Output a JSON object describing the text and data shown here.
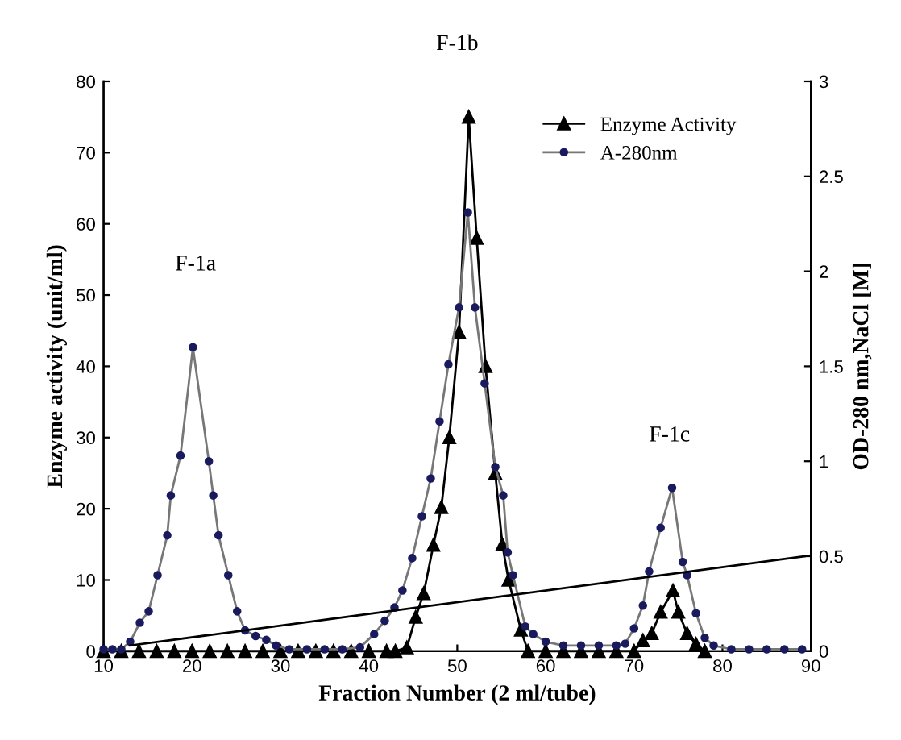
{
  "chart_data": {
    "type": "line",
    "title": "F-1b",
    "xlabel": "Fraction Number (2 ml/tube)",
    "ylabel": "Enzyme activity (unit/ml)",
    "y2label": "OD-280 nm,NaCl [M]",
    "xlim": [
      10,
      90
    ],
    "xticks": [
      10,
      20,
      30,
      40,
      50,
      60,
      70,
      80,
      90
    ],
    "ylim": [
      0,
      80
    ],
    "yticks": [
      0,
      10,
      20,
      30,
      40,
      50,
      60,
      70,
      80
    ],
    "y2lim": [
      0,
      3
    ],
    "y2ticks": [
      0,
      0.5,
      1,
      1.5,
      2,
      2.5,
      3
    ],
    "grid": false,
    "legend": "top right",
    "annotations": [
      "F-1a",
      "F-1c"
    ],
    "series": [
      {
        "name": "Enzyme Activity",
        "color": "#000000",
        "marker": "triangle",
        "x": [
          10,
          12,
          14,
          16,
          18,
          20,
          22,
          24,
          26,
          28,
          30,
          32,
          34,
          36,
          38,
          40,
          42,
          43,
          44.3,
          45.3,
          46.2,
          47.3,
          48.2,
          49.1,
          50.2,
          51.3,
          52.2,
          53.2,
          54.3,
          55.1,
          55.8,
          57.2,
          58,
          60,
          62,
          64,
          66,
          68,
          70,
          71,
          72,
          73,
          74.4,
          75,
          76,
          77,
          78
        ],
        "values": [
          0,
          0,
          0,
          0,
          0,
          0,
          0,
          0,
          0,
          0,
          0,
          0,
          0,
          0,
          0,
          0,
          0,
          0,
          0.5,
          4.8,
          8.1,
          14.9,
          20.2,
          30,
          44.8,
          75,
          58,
          40,
          25,
          15,
          10,
          3,
          0,
          0,
          0,
          0,
          0,
          0,
          0,
          1.5,
          2.5,
          5.5,
          8.5,
          5.5,
          2.5,
          1,
          0
        ]
      },
      {
        "name": "A-280nm",
        "color": "#1a1a5e",
        "marker": "circle",
        "axis": "y2",
        "x": [
          10,
          11,
          12,
          13,
          14.1,
          15.1,
          16.1,
          17.2,
          17.6,
          18.7,
          20.1,
          21.9,
          22.4,
          23,
          24.1,
          25.1,
          26,
          27.2,
          28.4,
          29.5,
          31,
          33,
          35,
          37,
          39,
          40.6,
          41.8,
          42.9,
          43.8,
          44.9,
          46,
          47,
          48,
          49,
          50.2,
          51.2,
          52,
          53.1,
          54.3,
          55.2,
          55.7,
          56.3,
          57.7,
          58.6,
          60,
          62,
          64,
          66,
          68,
          69,
          70,
          71,
          71.7,
          73,
          74.3,
          75.5,
          76,
          77,
          78,
          79,
          81,
          83,
          85,
          87,
          89
        ],
        "values": [
          0.01,
          0.01,
          0.01,
          0.05,
          0.15,
          0.21,
          0.4,
          0.61,
          0.82,
          1.03,
          1.6,
          1.0,
          0.82,
          0.61,
          0.4,
          0.21,
          0.11,
          0.08,
          0.06,
          0.03,
          0.01,
          0.01,
          0.01,
          0.01,
          0.02,
          0.09,
          0.16,
          0.23,
          0.32,
          0.49,
          0.71,
          0.91,
          1.21,
          1.51,
          1.81,
          2.31,
          1.81,
          1.41,
          0.97,
          0.82,
          0.52,
          0.4,
          0.13,
          0.09,
          0.05,
          0.03,
          0.03,
          0.03,
          0.03,
          0.04,
          0.12,
          0.24,
          0.42,
          0.65,
          0.86,
          0.47,
          0.4,
          0.2,
          0.07,
          0.03,
          0.01,
          0.01,
          0.01,
          0.01,
          0.01
        ]
      },
      {
        "color": "#000000",
        "marker": "none",
        "axis": "y2",
        "x": [
          13,
          89.3
        ],
        "values": [
          0.03,
          0.5
        ]
      }
    ]
  }
}
